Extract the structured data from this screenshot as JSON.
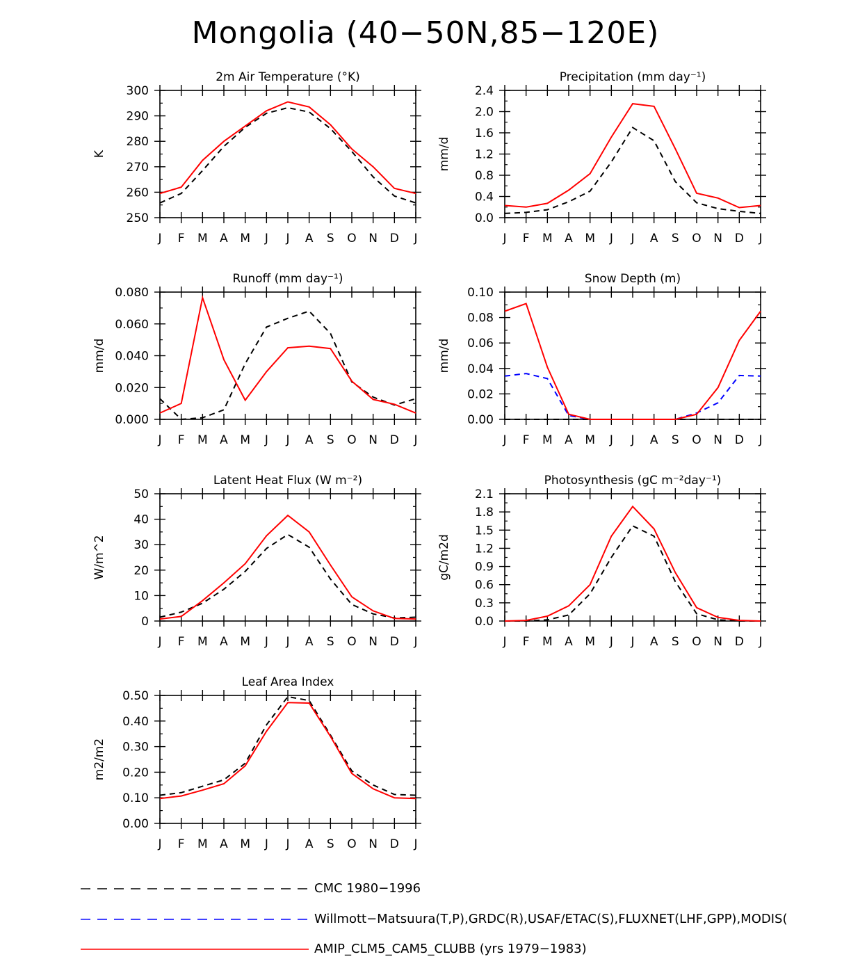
{
  "title": "Mongolia (40−50N,85−120E)",
  "colors": {
    "cmc": "#000000",
    "obs": "#0000ff",
    "model": "#ff0000"
  },
  "legend": {
    "cmc": "CMC 1980−1996",
    "obs": "Willmott−Matsuura(T,P),GRDC(R),USAF/ETAC(S),FLUXNET(LHF,GPP),MODIS(",
    "model": "AMIP_CLM5_CAM5_CLUBB (yrs 1979−1983)"
  },
  "chart_data": [
    {
      "type": "line",
      "title": "2m Air Temperature (°K)",
      "ylabel": "K",
      "ylim": [
        250,
        300
      ],
      "yticks": [
        250,
        260,
        270,
        280,
        290,
        300
      ],
      "ytick_labels": [
        "250",
        "260",
        "270",
        "280",
        "290",
        "300"
      ],
      "categories": [
        "J",
        "F",
        "M",
        "A",
        "M",
        "J",
        "J",
        "A",
        "S",
        "O",
        "N",
        "D",
        "J"
      ],
      "series": [
        {
          "key": "cmc",
          "style": "dashed",
          "values": [
            255.8,
            259.5,
            268.5,
            278.0,
            285.5,
            291.0,
            293.2,
            291.5,
            285.0,
            276.0,
            266.0,
            258.5,
            255.8
          ]
        },
        {
          "key": "model",
          "style": "solid",
          "values": [
            259.5,
            262.0,
            272.5,
            280.0,
            286.0,
            292.0,
            295.5,
            293.5,
            286.5,
            277.0,
            270.0,
            261.5,
            259.5
          ]
        }
      ]
    },
    {
      "type": "line",
      "title": "Precipitation (mm day⁻¹)",
      "ylabel": "mm/d",
      "ylim": [
        0,
        2.4
      ],
      "yticks": [
        0,
        0.4,
        0.8,
        1.2,
        1.6,
        2.0,
        2.4
      ],
      "ytick_labels": [
        "0.0",
        "0.4",
        "0.8",
        "1.2",
        "1.6",
        "2.0",
        "2.4"
      ],
      "categories": [
        "J",
        "F",
        "M",
        "A",
        "M",
        "J",
        "J",
        "A",
        "S",
        "O",
        "N",
        "D",
        "J"
      ],
      "series": [
        {
          "key": "cmc",
          "style": "dashed",
          "values": [
            0.08,
            0.1,
            0.15,
            0.3,
            0.5,
            1.05,
            1.7,
            1.45,
            0.68,
            0.28,
            0.17,
            0.12,
            0.08
          ]
        },
        {
          "key": "model",
          "style": "solid",
          "values": [
            0.23,
            0.2,
            0.27,
            0.52,
            0.83,
            1.52,
            2.15,
            2.1,
            1.3,
            0.46,
            0.37,
            0.19,
            0.23
          ]
        }
      ]
    },
    {
      "type": "line",
      "title": "Runoff (mm day⁻¹)",
      "ylabel": "mm/d",
      "ylim": [
        0,
        0.08
      ],
      "yticks": [
        0,
        0.02,
        0.04,
        0.06,
        0.08
      ],
      "ytick_labels": [
        "0.000",
        "0.020",
        "0.040",
        "0.060",
        "0.080"
      ],
      "categories": [
        "J",
        "F",
        "M",
        "A",
        "M",
        "J",
        "J",
        "A",
        "S",
        "O",
        "N",
        "D",
        "J"
      ],
      "series": [
        {
          "key": "cmc",
          "style": "dashed",
          "values": [
            0.013,
            0.0,
            0.001,
            0.006,
            0.035,
            0.058,
            0.0635,
            0.068,
            0.054,
            0.0235,
            0.014,
            0.009,
            0.013
          ]
        },
        {
          "key": "model",
          "style": "solid",
          "values": [
            0.004,
            0.01,
            0.0765,
            0.0375,
            0.012,
            0.03,
            0.045,
            0.046,
            0.0445,
            0.024,
            0.0125,
            0.0095,
            0.004
          ]
        }
      ]
    },
    {
      "type": "line",
      "title": "Snow Depth (m)",
      "ylabel": "mm/d",
      "ylim": [
        0,
        0.1
      ],
      "yticks": [
        0,
        0.02,
        0.04,
        0.06,
        0.08,
        0.1
      ],
      "ytick_labels": [
        "0.00",
        "0.02",
        "0.04",
        "0.06",
        "0.08",
        "0.10"
      ],
      "categories": [
        "J",
        "F",
        "M",
        "A",
        "M",
        "J",
        "J",
        "A",
        "S",
        "O",
        "N",
        "D",
        "J"
      ],
      "series": [
        {
          "key": "cmc",
          "style": "dashed",
          "values": [
            0,
            0,
            0,
            0,
            0,
            0,
            0,
            0,
            0,
            0,
            0,
            0,
            0
          ]
        },
        {
          "key": "obs",
          "style": "dashed",
          "values": [
            0.034,
            0.036,
            0.032,
            0.003,
            0.0,
            0.0,
            0.0,
            0.0,
            0.0,
            0.005,
            0.013,
            0.0345,
            0.034
          ]
        },
        {
          "key": "model",
          "style": "solid",
          "values": [
            0.085,
            0.091,
            0.041,
            0.004,
            0.0,
            0.0,
            0.0,
            0.0,
            0.0,
            0.004,
            0.025,
            0.062,
            0.085
          ]
        }
      ]
    },
    {
      "type": "line",
      "title": "Latent Heat Flux (W m⁻²)",
      "ylabel": "W/m^2",
      "ylim": [
        0,
        50
      ],
      "yticks": [
        0,
        10,
        20,
        30,
        40,
        50
      ],
      "ytick_labels": [
        "0",
        "10",
        "20",
        "30",
        "40",
        "50"
      ],
      "categories": [
        "J",
        "F",
        "M",
        "A",
        "M",
        "J",
        "J",
        "A",
        "S",
        "O",
        "N",
        "D",
        "J"
      ],
      "series": [
        {
          "key": "cmc",
          "style": "dashed",
          "values": [
            1.5,
            3.5,
            7.0,
            12.5,
            19.5,
            28.5,
            34.0,
            29.0,
            16.5,
            6.5,
            2.8,
            1.2,
            1.5
          ]
        },
        {
          "key": "model",
          "style": "solid",
          "values": [
            0.8,
            1.8,
            8.0,
            15.0,
            22.5,
            33.5,
            41.5,
            35.0,
            22.0,
            9.5,
            4.0,
            1.0,
            0.8
          ]
        }
      ]
    },
    {
      "type": "line",
      "title": "Photosynthesis (gC m⁻²day⁻¹)",
      "ylabel": "gC/m2d",
      "ylim": [
        0,
        2.1
      ],
      "yticks": [
        0,
        0.3,
        0.6,
        0.9,
        1.2,
        1.5,
        1.8,
        2.1
      ],
      "ytick_labels": [
        "0.0",
        "0.3",
        "0.6",
        "0.9",
        "1.2",
        "1.5",
        "1.8",
        "2.1"
      ],
      "categories": [
        "J",
        "F",
        "M",
        "A",
        "M",
        "J",
        "J",
        "A",
        "S",
        "O",
        "N",
        "D",
        "J"
      ],
      "series": [
        {
          "key": "cmc",
          "style": "dashed",
          "values": [
            0.0,
            0.0,
            0.02,
            0.1,
            0.45,
            1.05,
            1.57,
            1.4,
            0.65,
            0.12,
            0.02,
            0.0,
            0.0
          ]
        },
        {
          "key": "model",
          "style": "solid",
          "values": [
            0.0,
            0.01,
            0.08,
            0.25,
            0.6,
            1.4,
            1.89,
            1.52,
            0.8,
            0.22,
            0.06,
            0.01,
            0.0
          ]
        }
      ]
    },
    {
      "type": "line",
      "title": "Leaf Area Index",
      "ylabel": "m2/m2",
      "ylim": [
        0,
        0.5
      ],
      "yticks": [
        0,
        0.1,
        0.2,
        0.3,
        0.4,
        0.5
      ],
      "ytick_labels": [
        "0.00",
        "0.10",
        "0.20",
        "0.30",
        "0.40",
        "0.50"
      ],
      "categories": [
        "J",
        "F",
        "M",
        "A",
        "M",
        "J",
        "J",
        "A",
        "S",
        "O",
        "N",
        "D",
        "J"
      ],
      "series": [
        {
          "key": "cmc",
          "style": "dashed",
          "values": [
            0.11,
            0.12,
            0.145,
            0.17,
            0.235,
            0.385,
            0.495,
            0.48,
            0.345,
            0.205,
            0.15,
            0.113,
            0.11
          ]
        },
        {
          "key": "model",
          "style": "solid",
          "values": [
            0.097,
            0.107,
            0.13,
            0.155,
            0.225,
            0.36,
            0.472,
            0.47,
            0.34,
            0.195,
            0.135,
            0.1,
            0.097
          ]
        }
      ]
    }
  ]
}
